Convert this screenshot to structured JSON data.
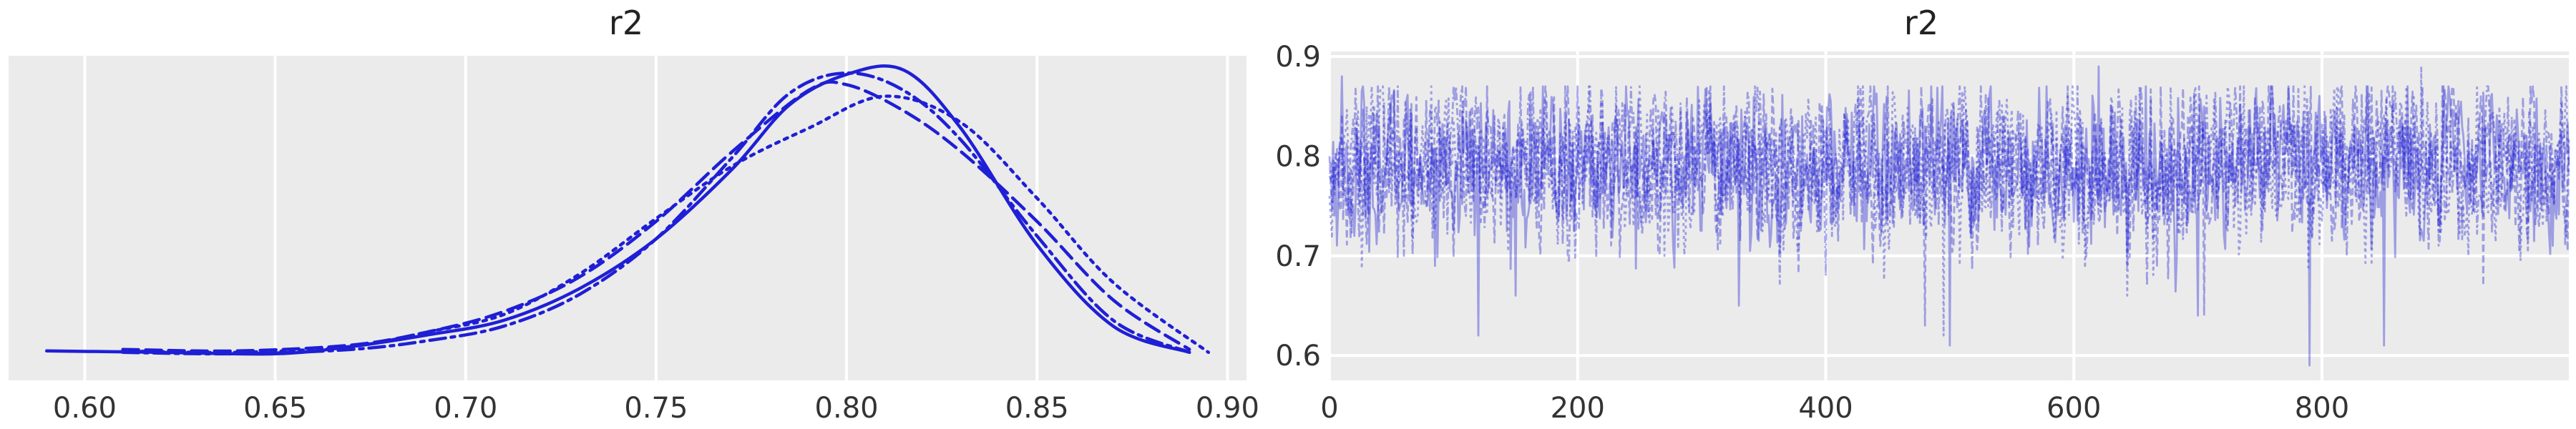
{
  "colors": {
    "series": "#1f1fd6",
    "background": "#ebebeb",
    "grid": "#ffffff",
    "text": "#333333"
  },
  "chart_data": [
    {
      "type": "line",
      "title": "r2",
      "xlim": [
        0.58,
        0.905
      ],
      "xticks": [
        "0.60",
        "0.65",
        "0.70",
        "0.75",
        "0.80",
        "0.85",
        "0.90"
      ],
      "xtick_values": [
        0.6,
        0.65,
        0.7,
        0.75,
        0.8,
        0.85,
        0.9
      ],
      "ylim": [
        0,
        1.0
      ],
      "yticks": [],
      "grid": true,
      "legend": "none",
      "series": [
        {
          "style": "solid",
          "x": [
            0.59,
            0.62,
            0.65,
            0.67,
            0.69,
            0.71,
            0.73,
            0.75,
            0.77,
            0.785,
            0.8,
            0.815,
            0.83,
            0.85,
            0.87,
            0.89
          ],
          "y": [
            0.035,
            0.03,
            0.025,
            0.05,
            0.09,
            0.14,
            0.25,
            0.42,
            0.66,
            0.88,
            0.985,
            1.0,
            0.8,
            0.4,
            0.12,
            0.03
          ]
        },
        {
          "style": "dashed",
          "x": [
            0.61,
            0.64,
            0.67,
            0.69,
            0.71,
            0.73,
            0.75,
            0.77,
            0.79,
            0.8,
            0.815,
            0.83,
            0.85,
            0.87,
            0.89
          ],
          "y": [
            0.04,
            0.035,
            0.055,
            0.1,
            0.17,
            0.29,
            0.48,
            0.72,
            0.93,
            0.95,
            0.86,
            0.72,
            0.48,
            0.21,
            0.04
          ]
        },
        {
          "style": "dotted",
          "x": [
            0.61,
            0.64,
            0.67,
            0.69,
            0.71,
            0.73,
            0.75,
            0.77,
            0.79,
            0.81,
            0.83,
            0.85,
            0.87,
            0.895
          ],
          "y": [
            0.035,
            0.03,
            0.05,
            0.1,
            0.16,
            0.3,
            0.49,
            0.67,
            0.8,
            0.91,
            0.82,
            0.56,
            0.27,
            0.03
          ]
        },
        {
          "style": "dashdot",
          "x": [
            0.61,
            0.64,
            0.67,
            0.69,
            0.71,
            0.73,
            0.75,
            0.77,
            0.785,
            0.8,
            0.815,
            0.83,
            0.85,
            0.87,
            0.89
          ],
          "y": [
            0.03,
            0.025,
            0.04,
            0.07,
            0.12,
            0.23,
            0.42,
            0.7,
            0.92,
            0.99,
            0.93,
            0.76,
            0.43,
            0.14,
            0.03
          ]
        }
      ]
    },
    {
      "type": "line",
      "title": "r2",
      "xlim": [
        0,
        999
      ],
      "xticks": [
        "0",
        "200",
        "400",
        "600",
        "800"
      ],
      "xtick_values": [
        0,
        200,
        400,
        600,
        800
      ],
      "ylim": [
        0.575,
        0.905
      ],
      "yticks": [
        "0.6",
        "0.7",
        "0.8",
        "0.9"
      ],
      "ytick_values": [
        0.6,
        0.7,
        0.8,
        0.9
      ],
      "grid": true,
      "legend": "none",
      "n_draws": 1000,
      "series": [
        {
          "style": "solid",
          "n_draws": 1000,
          "key_points": [
            [
              0,
              0.78
            ],
            [
              10,
              0.88
            ],
            [
              20,
              0.72
            ],
            [
              120,
              0.62
            ],
            [
              150,
              0.66
            ],
            [
              330,
              0.65
            ],
            [
              500,
              0.61
            ],
            [
              620,
              0.89
            ],
            [
              700,
              0.64
            ],
            [
              790,
              0.59
            ],
            [
              850,
              0.61
            ],
            [
              990,
              0.8
            ]
          ]
        },
        {
          "style": "dashed",
          "n_draws": 1000,
          "key_points": [
            [
              0,
              0.8
            ],
            [
              100,
              0.7
            ],
            [
              220,
              0.86
            ],
            [
              480,
              0.63
            ],
            [
              705,
              0.64
            ],
            [
              930,
              0.67
            ]
          ]
        },
        {
          "style": "dotted",
          "n_draws": 1000,
          "key_points": [
            [
              0,
              0.76
            ],
            [
              30,
              0.85
            ],
            [
              270,
              0.7
            ],
            [
              495,
              0.62
            ],
            [
              880,
              0.89
            ],
            [
              970,
              0.83
            ]
          ]
        },
        {
          "style": "dashdot",
          "n_draws": 1000,
          "key_points": [
            [
              0,
              0.79
            ],
            [
              60,
              0.7
            ],
            [
              400,
              0.68
            ],
            [
              650,
              0.86
            ],
            [
              820,
              0.7
            ],
            [
              999,
              0.78
            ]
          ]
        }
      ]
    }
  ]
}
